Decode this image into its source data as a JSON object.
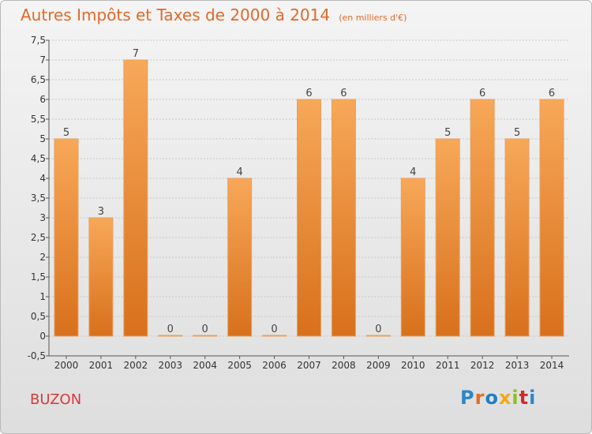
{
  "title": {
    "main": "Autres Impôts et Taxes de 2000 à 2014",
    "unit": "(en milliers d'€)"
  },
  "commune": "BUZON",
  "logo": {
    "letters": [
      "P",
      "r",
      "o",
      "x",
      "i",
      "t",
      "i"
    ]
  },
  "colors": {
    "bar_top": "#f7a858",
    "bar_bottom": "#d8701c",
    "title": "#e06a2a",
    "commune": "#d63a3a",
    "grid": "#c8c8c8"
  },
  "chart_data": {
    "type": "bar",
    "title": "Autres Impôts et Taxes de 2000 à 2014",
    "xlabel": "",
    "ylabel": "",
    "categories": [
      "2000",
      "2001",
      "2002",
      "2003",
      "2004",
      "2005",
      "2006",
      "2007",
      "2008",
      "2009",
      "2010",
      "2011",
      "2012",
      "2013",
      "2014"
    ],
    "values": [
      5,
      3,
      7,
      0,
      0,
      4,
      0,
      6,
      6,
      0,
      4,
      5,
      6,
      5,
      6
    ],
    "data_labels": [
      "5",
      "3",
      "7",
      "0",
      "0",
      "4",
      "0",
      "6",
      "6",
      "0",
      "4",
      "5",
      "6",
      "5",
      "6"
    ],
    "ylim": [
      -0.5,
      7.5
    ],
    "yticks": [
      -0.5,
      0,
      0.5,
      1,
      1.5,
      2,
      2.5,
      3,
      3.5,
      4,
      4.5,
      5,
      5.5,
      6,
      6.5,
      7,
      7.5
    ],
    "ytick_labels": [
      "-0,5",
      "0",
      "0,5",
      "1",
      "1,5",
      "2",
      "2,5",
      "3",
      "3,5",
      "4",
      "4,5",
      "5",
      "5,5",
      "6",
      "6,5",
      "7",
      "7,5"
    ],
    "grid": "horizontal"
  }
}
